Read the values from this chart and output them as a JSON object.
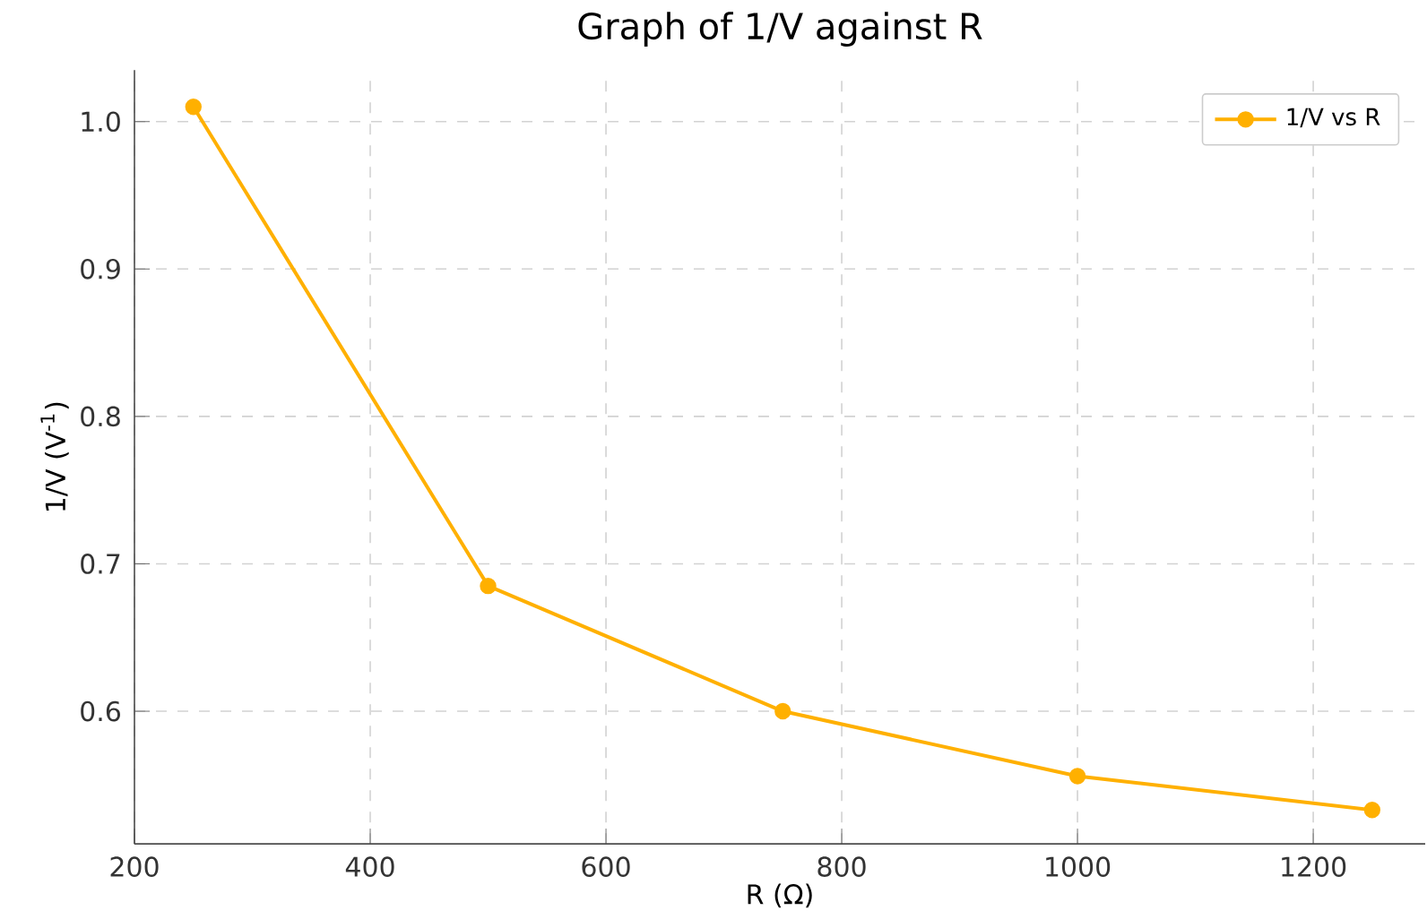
{
  "chart_data": {
    "type": "line",
    "title": "Graph of 1/V against R",
    "xlabel": "R (Ω)",
    "ylabel": "1/V (V$^{-1}$)",
    "x": [
      250,
      500,
      750,
      1000,
      1250
    ],
    "series": [
      {
        "name": "1/V vs R",
        "color": "#ffb000",
        "values": [
          1.01,
          0.685,
          0.6,
          0.556,
          0.533
        ]
      }
    ],
    "xlim": [
      200,
      1295
    ],
    "ylim": [
      0.51,
      1.035
    ],
    "xticks": [
      200,
      400,
      600,
      800,
      1000,
      1200
    ],
    "yticks": [
      0.6,
      0.7,
      0.8,
      0.9,
      {
        "value": 1,
        "label": "1.0"
      }
    ],
    "grid": true,
    "legend": "top right",
    "marker": "circle",
    "line_style": "solid"
  }
}
